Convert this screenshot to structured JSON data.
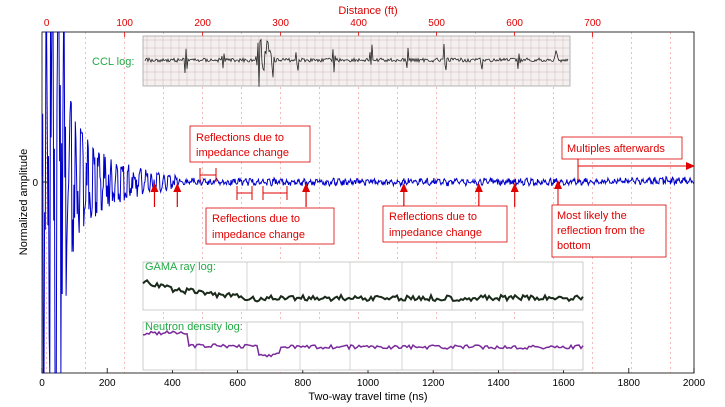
{
  "chart_data": {
    "type": "line",
    "xlabel": "Two-way travel time (ns)",
    "ylabel": "Normalized amplitude",
    "xlim": [
      0,
      2000
    ],
    "x_ticks": [
      0,
      200,
      400,
      600,
      800,
      1000,
      1200,
      1400,
      1600,
      1800,
      2000
    ],
    "top_axis": {
      "label": "Distance (ft)",
      "xlim_ft": [
        -6,
        830
      ],
      "ticks": [
        0,
        100,
        200,
        300,
        400,
        500,
        600,
        700
      ],
      "color": "#e00000"
    },
    "y_ticks": [
      0
    ],
    "series_color": "#0000cc",
    "reflection_arrows_ns": [
      345,
      415,
      810,
      1110,
      1340,
      1450
    ],
    "callouts": {
      "refl_1": [
        "Reflections due to",
        "impedance change"
      ],
      "refl_2": [
        "Reflections due to",
        "impedance change"
      ],
      "refl_3": [
        "Reflections due to",
        "impedance change"
      ],
      "multiples": "Multiples afterwards",
      "bottom": [
        "Most likely the",
        "reflection from the",
        "bottom"
      ]
    },
    "inset_logs": [
      {
        "title": "CCL log:",
        "color": "#22aa44",
        "trace_color": "#222222"
      },
      {
        "title": "GAMA ray log:",
        "color": "#22aa44",
        "trace_color": "#1a2a1a"
      },
      {
        "title": "Neutron density log:",
        "color": "#22aa44",
        "trace_color": "#7a2a9a"
      }
    ],
    "annotation_color": "#e00000",
    "grid": false
  }
}
